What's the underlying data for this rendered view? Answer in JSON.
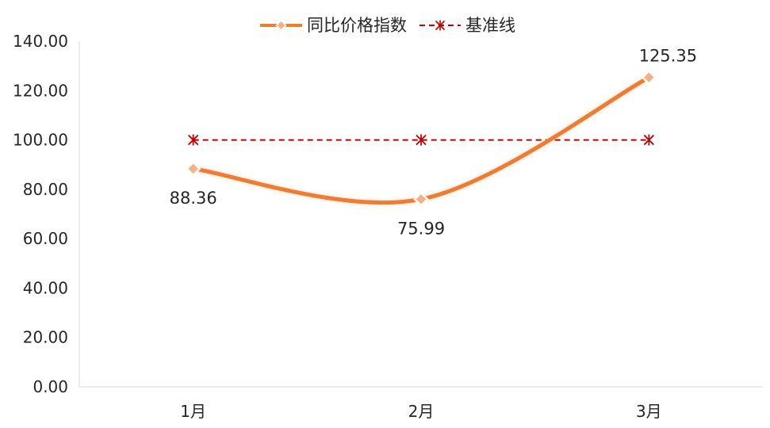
{
  "chart_data": {
    "type": "line",
    "categories": [
      "1月",
      "2月",
      "3月"
    ],
    "y_ticks": [
      "0.00",
      "20.00",
      "40.00",
      "60.00",
      "80.00",
      "100.00",
      "120.00",
      "140.00"
    ],
    "ylim": [
      0,
      140
    ],
    "grid": false,
    "legend_position": "top-center",
    "series": [
      {
        "name": "同比价格指数",
        "values": [
          88.36,
          75.99,
          125.35
        ],
        "value_labels": [
          "88.36",
          "75.99",
          "125.35"
        ],
        "color": "#ED7D31",
        "line_style": "solid",
        "smooth": true,
        "marker": "diamond"
      },
      {
        "name": "基准线",
        "values": [
          100,
          100,
          100
        ],
        "color": "#C00000",
        "line_style": "dashed",
        "smooth": false,
        "marker": "asterisk"
      }
    ]
  }
}
